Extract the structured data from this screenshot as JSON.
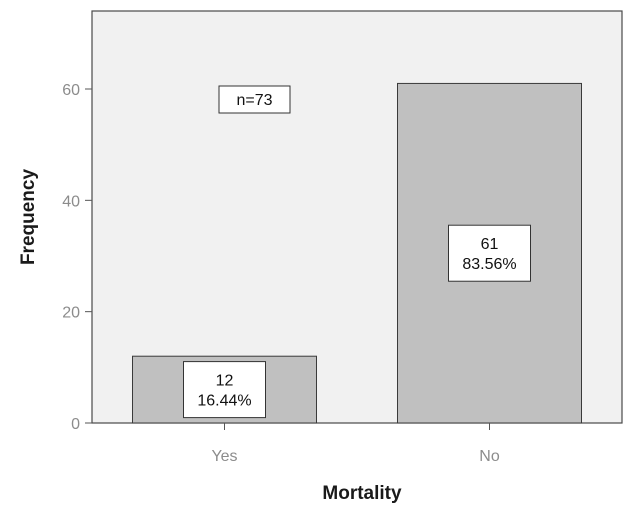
{
  "chart_data": {
    "type": "bar",
    "title": "",
    "xlabel": "Mortality",
    "ylabel": "Frequency",
    "categories": [
      "Yes",
      "No"
    ],
    "values": [
      12,
      61
    ],
    "percent_labels": [
      "16.44%",
      "83.56%"
    ],
    "count_labels": [
      "12",
      "61"
    ],
    "annotation": "n=73",
    "ylim": [
      0,
      75
    ],
    "yticks": [
      0,
      20,
      40,
      60
    ],
    "grid": false,
    "colors": {
      "bar": "#c0c0c0",
      "plot_background": "#f1f1f1",
      "bar_edge": "#3a3a3a"
    }
  }
}
